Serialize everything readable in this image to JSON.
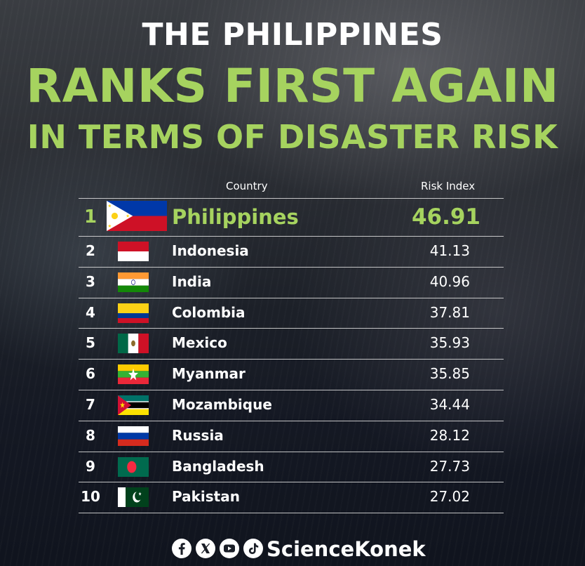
{
  "headline": {
    "line1": "THE PHILIPPINES",
    "line2": "RANKS FIRST AGAIN",
    "line3": "IN TERMS OF DISASTER RISK"
  },
  "chart_data": {
    "type": "table",
    "columns": [
      "",
      "Country",
      "Risk Index"
    ],
    "rows": [
      {
        "rank": "1",
        "country": "Philippines",
        "flag": "flag-philippines",
        "risk_index": "46.91"
      },
      {
        "rank": "2",
        "country": "Indonesia",
        "flag": "flag-indonesia",
        "risk_index": "41.13"
      },
      {
        "rank": "3",
        "country": "India",
        "flag": "flag-india",
        "risk_index": "40.96"
      },
      {
        "rank": "4",
        "country": "Colombia",
        "flag": "flag-colombia",
        "risk_index": "37.81"
      },
      {
        "rank": "5",
        "country": "Mexico",
        "flag": "flag-mexico",
        "risk_index": "35.93"
      },
      {
        "rank": "6",
        "country": "Myanmar",
        "flag": "flag-myanmar",
        "risk_index": "35.85"
      },
      {
        "rank": "7",
        "country": "Mozambique",
        "flag": "flag-mozambique",
        "risk_index": "34.44"
      },
      {
        "rank": "8",
        "country": "Russia",
        "flag": "flag-russia",
        "risk_index": "28.12"
      },
      {
        "rank": "9",
        "country": "Bangladesh",
        "flag": "flag-bangladesh",
        "risk_index": "27.73"
      },
      {
        "rank": "10",
        "country": "Pakistan",
        "flag": "flag-pakistan",
        "risk_index": "27.02"
      }
    ]
  },
  "footer": {
    "icons": [
      "facebook-icon",
      "x-icon",
      "youtube-icon",
      "tiktok-icon"
    ],
    "brand": "ScienceKonek"
  },
  "colors": {
    "accent": "#a6d35f",
    "text": "#ffffff"
  }
}
